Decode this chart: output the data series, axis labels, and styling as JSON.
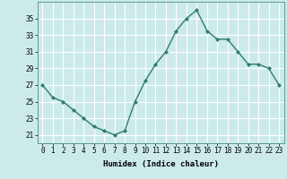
{
  "x": [
    0,
    1,
    2,
    3,
    4,
    5,
    6,
    7,
    8,
    9,
    10,
    11,
    12,
    13,
    14,
    15,
    16,
    17,
    18,
    19,
    20,
    21,
    22,
    23
  ],
  "y": [
    27,
    25.5,
    25,
    24,
    23,
    22,
    21.5,
    21,
    21.5,
    25,
    27.5,
    29.5,
    31,
    33.5,
    35,
    36,
    33.5,
    32.5,
    32.5,
    31,
    29.5,
    29.5,
    29,
    27
  ],
  "line_color": "#2e7d6e",
  "marker": "D",
  "marker_size": 2,
  "bg_color": "#cceaea",
  "grid_color": "#ffffff",
  "xlabel": "Humidex (Indice chaleur)",
  "xlim": [
    -0.5,
    23.5
  ],
  "ylim": [
    20.0,
    37.0
  ],
  "yticks": [
    21,
    23,
    25,
    27,
    29,
    31,
    33,
    35
  ],
  "xticks": [
    0,
    1,
    2,
    3,
    4,
    5,
    6,
    7,
    8,
    9,
    10,
    11,
    12,
    13,
    14,
    15,
    16,
    17,
    18,
    19,
    20,
    21,
    22,
    23
  ],
  "xlabel_fontsize": 6.5,
  "tick_fontsize": 5.5,
  "line_width": 1.0
}
